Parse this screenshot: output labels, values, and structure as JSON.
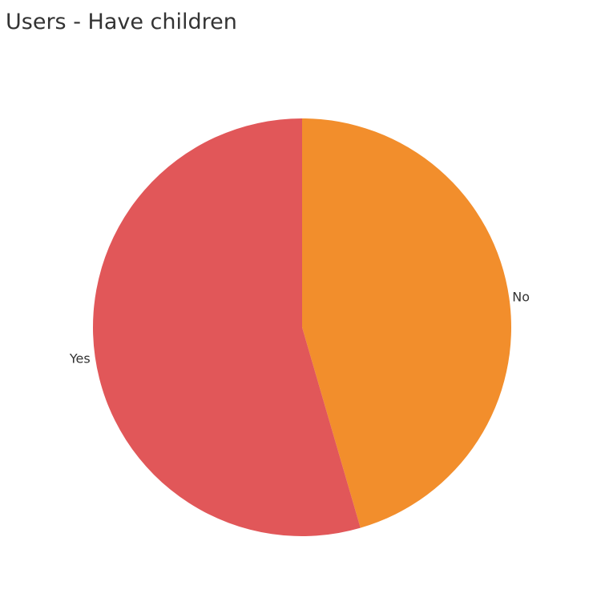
{
  "chart_data": {
    "type": "pie",
    "title": "Users - Have children",
    "start": "top",
    "direction": "clockwise",
    "slices": [
      {
        "label": "No",
        "value": 45.5,
        "color": "#f28e2c"
      },
      {
        "label": "Yes",
        "value": 54.5,
        "color": "#e15759"
      }
    ]
  }
}
